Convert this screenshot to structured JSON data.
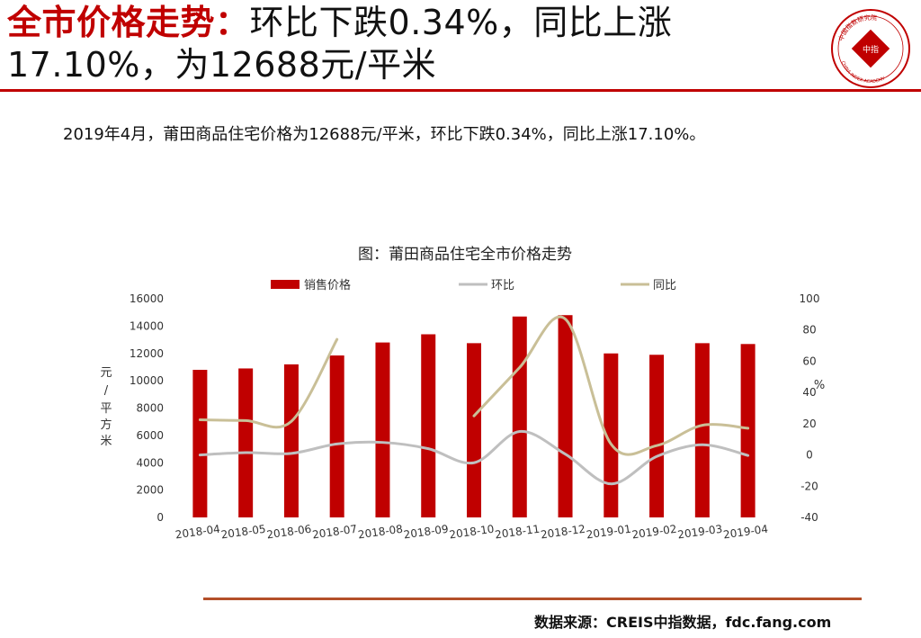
{
  "header": {
    "title_highlight": "全市价格走势：",
    "title_line1_rest": "环比下跌0.34%，同比上涨",
    "title_line2": "17.10%，为12688元/平米"
  },
  "summary": "2019年4月，莆田商品住宅价格为12688元/平米，环比下跌0.34%，同比上涨17.10%。",
  "source": "数据来源：CREIS中指数据，fdc.fang.com",
  "colors": {
    "accent": "#c00000",
    "bar": "#c00000",
    "mom": "#bfbfbf",
    "yoy": "#c9bf97",
    "footer_rule": "#b4502a"
  },
  "logo": {
    "top_text": "中国指数研究院",
    "bottom_text": "CHINA INDEX ACADEMY",
    "center": "中指"
  },
  "chart_data": {
    "type": "bar",
    "title": "图：莆田商品住宅全市价格走势",
    "categories": [
      "2018-04",
      "2018-05",
      "2018-06",
      "2018-07",
      "2018-08",
      "2018-09",
      "2018-10",
      "2018-11",
      "2018-12",
      "2019-01",
      "2019-02",
      "2019-03",
      "2019-04"
    ],
    "ylabel_left": "元/平方米",
    "ylabel_right": "%",
    "ylim_left": [
      0,
      16000
    ],
    "yticks_left": [
      0,
      2000,
      4000,
      6000,
      8000,
      10000,
      12000,
      14000,
      16000
    ],
    "ylim_right": [
      -40,
      100
    ],
    "yticks_right": [
      -40,
      -20,
      0,
      20,
      40,
      60,
      80,
      100
    ],
    "legend_position": "top",
    "grid": false,
    "series": [
      {
        "name": "销售价格",
        "type": "bar",
        "axis": "left",
        "values": [
          10800,
          10900,
          11200,
          11850,
          12800,
          13400,
          12750,
          14700,
          14800,
          12000,
          11900,
          12750,
          12688
        ]
      },
      {
        "name": "环比",
        "type": "line",
        "axis": "right",
        "values": [
          0,
          1.5,
          1.0,
          7.0,
          8.0,
          4.0,
          -5.0,
          15.0,
          0.5,
          -18.5,
          -1.0,
          6.5,
          -0.34
        ]
      },
      {
        "name": "同比",
        "type": "line",
        "axis": "right",
        "values": [
          22.5,
          22.0,
          21.5,
          74.0,
          null,
          null,
          25.0,
          56.0,
          87.0,
          7.0,
          6.0,
          19.0,
          17.1
        ]
      }
    ]
  }
}
